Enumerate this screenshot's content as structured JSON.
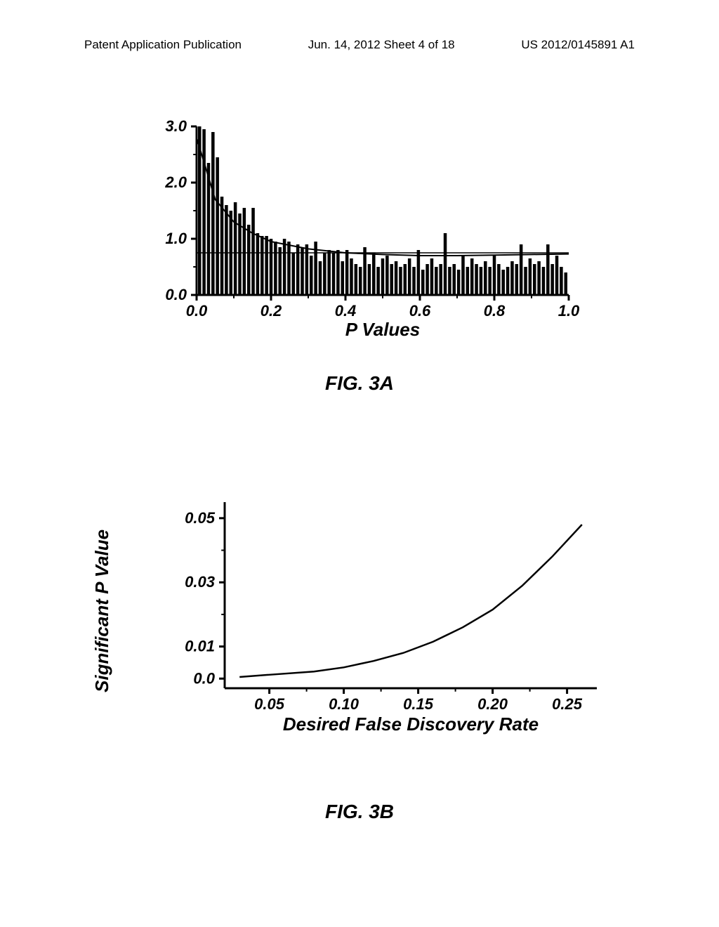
{
  "header": {
    "left": "Patent Application Publication",
    "center": "Jun. 14, 2012  Sheet 4 of 18",
    "right": "US 2012/0145891 A1"
  },
  "figA": {
    "type": "histogram",
    "caption": "FIG. 3A",
    "xlabel": "P Values",
    "xlim": [
      0.0,
      1.0
    ],
    "ylim": [
      0.0,
      3.0
    ],
    "xticks": [
      0.0,
      0.2,
      0.4,
      0.6,
      0.8,
      1.0
    ],
    "xtick_labels": [
      "0.0",
      "0.2",
      "0.4",
      "0.6",
      "0.8",
      "1.0"
    ],
    "yticks": [
      0.0,
      1.0,
      2.0,
      3.0
    ],
    "ytick_labels": [
      "0.0",
      "1.0",
      "2.0",
      "3.0"
    ],
    "bar_color": "#000000",
    "bar_width": 0.0085,
    "bars": [
      {
        "x": 0.008,
        "y": 3.05
      },
      {
        "x": 0.02,
        "y": 2.95
      },
      {
        "x": 0.032,
        "y": 2.35
      },
      {
        "x": 0.044,
        "y": 2.9
      },
      {
        "x": 0.056,
        "y": 2.45
      },
      {
        "x": 0.068,
        "y": 1.75
      },
      {
        "x": 0.08,
        "y": 1.6
      },
      {
        "x": 0.092,
        "y": 1.5
      },
      {
        "x": 0.104,
        "y": 1.65
      },
      {
        "x": 0.116,
        "y": 1.45
      },
      {
        "x": 0.128,
        "y": 1.55
      },
      {
        "x": 0.14,
        "y": 1.25
      },
      {
        "x": 0.152,
        "y": 1.55
      },
      {
        "x": 0.164,
        "y": 1.1
      },
      {
        "x": 0.176,
        "y": 1.05
      },
      {
        "x": 0.188,
        "y": 1.05
      },
      {
        "x": 0.2,
        "y": 1.0
      },
      {
        "x": 0.212,
        "y": 0.95
      },
      {
        "x": 0.224,
        "y": 0.85
      },
      {
        "x": 0.236,
        "y": 1.0
      },
      {
        "x": 0.248,
        "y": 0.95
      },
      {
        "x": 0.26,
        "y": 0.75
      },
      {
        "x": 0.272,
        "y": 0.9
      },
      {
        "x": 0.284,
        "y": 0.85
      },
      {
        "x": 0.296,
        "y": 0.9
      },
      {
        "x": 0.308,
        "y": 0.7
      },
      {
        "x": 0.32,
        "y": 0.95
      },
      {
        "x": 0.332,
        "y": 0.6
      },
      {
        "x": 0.344,
        "y": 0.75
      },
      {
        "x": 0.356,
        "y": 0.8
      },
      {
        "x": 0.368,
        "y": 0.75
      },
      {
        "x": 0.38,
        "y": 0.8
      },
      {
        "x": 0.392,
        "y": 0.6
      },
      {
        "x": 0.404,
        "y": 0.8
      },
      {
        "x": 0.416,
        "y": 0.65
      },
      {
        "x": 0.428,
        "y": 0.55
      },
      {
        "x": 0.44,
        "y": 0.5
      },
      {
        "x": 0.452,
        "y": 0.85
      },
      {
        "x": 0.464,
        "y": 0.55
      },
      {
        "x": 0.476,
        "y": 0.75
      },
      {
        "x": 0.488,
        "y": 0.5
      },
      {
        "x": 0.5,
        "y": 0.65
      },
      {
        "x": 0.512,
        "y": 0.7
      },
      {
        "x": 0.524,
        "y": 0.55
      },
      {
        "x": 0.536,
        "y": 0.6
      },
      {
        "x": 0.548,
        "y": 0.5
      },
      {
        "x": 0.56,
        "y": 0.55
      },
      {
        "x": 0.572,
        "y": 0.65
      },
      {
        "x": 0.584,
        "y": 0.5
      },
      {
        "x": 0.596,
        "y": 0.8
      },
      {
        "x": 0.608,
        "y": 0.45
      },
      {
        "x": 0.62,
        "y": 0.55
      },
      {
        "x": 0.632,
        "y": 0.65
      },
      {
        "x": 0.644,
        "y": 0.5
      },
      {
        "x": 0.656,
        "y": 0.55
      },
      {
        "x": 0.668,
        "y": 1.1
      },
      {
        "x": 0.68,
        "y": 0.5
      },
      {
        "x": 0.692,
        "y": 0.55
      },
      {
        "x": 0.704,
        "y": 0.45
      },
      {
        "x": 0.716,
        "y": 0.7
      },
      {
        "x": 0.728,
        "y": 0.5
      },
      {
        "x": 0.74,
        "y": 0.65
      },
      {
        "x": 0.752,
        "y": 0.55
      },
      {
        "x": 0.764,
        "y": 0.5
      },
      {
        "x": 0.776,
        "y": 0.6
      },
      {
        "x": 0.788,
        "y": 0.5
      },
      {
        "x": 0.8,
        "y": 0.7
      },
      {
        "x": 0.812,
        "y": 0.55
      },
      {
        "x": 0.824,
        "y": 0.45
      },
      {
        "x": 0.836,
        "y": 0.5
      },
      {
        "x": 0.848,
        "y": 0.6
      },
      {
        "x": 0.86,
        "y": 0.55
      },
      {
        "x": 0.872,
        "y": 0.9
      },
      {
        "x": 0.884,
        "y": 0.5
      },
      {
        "x": 0.896,
        "y": 0.65
      },
      {
        "x": 0.908,
        "y": 0.55
      },
      {
        "x": 0.92,
        "y": 0.6
      },
      {
        "x": 0.932,
        "y": 0.5
      },
      {
        "x": 0.944,
        "y": 0.9
      },
      {
        "x": 0.956,
        "y": 0.55
      },
      {
        "x": 0.968,
        "y": 0.7
      },
      {
        "x": 0.98,
        "y": 0.5
      },
      {
        "x": 0.992,
        "y": 0.4
      }
    ],
    "curve": [
      {
        "x": 0.0,
        "y": 2.8
      },
      {
        "x": 0.05,
        "y": 1.7
      },
      {
        "x": 0.1,
        "y": 1.3
      },
      {
        "x": 0.15,
        "y": 1.1
      },
      {
        "x": 0.2,
        "y": 0.95
      },
      {
        "x": 0.3,
        "y": 0.82
      },
      {
        "x": 0.4,
        "y": 0.75
      },
      {
        "x": 0.5,
        "y": 0.72
      },
      {
        "x": 0.6,
        "y": 0.7
      },
      {
        "x": 0.7,
        "y": 0.7
      },
      {
        "x": 0.8,
        "y": 0.71
      },
      {
        "x": 0.9,
        "y": 0.72
      },
      {
        "x": 1.0,
        "y": 0.73
      }
    ],
    "hline_y": 0.75,
    "axis_color": "#000000",
    "axis_width": 3,
    "tick_len": 8,
    "label_fontsize": 22,
    "xlabel_fontsize": 26
  },
  "figB": {
    "type": "line",
    "caption": "FIG. 3B",
    "xlabel": "Desired False Discovery Rate",
    "ylabel": "Significant P Value",
    "xlim": [
      0.02,
      0.27
    ],
    "ylim": [
      -0.003,
      0.055
    ],
    "xticks": [
      0.05,
      0.1,
      0.15,
      0.2,
      0.25
    ],
    "xtick_labels": [
      "0.05",
      "0.10",
      "0.15",
      "0.20",
      "0.25"
    ],
    "yticks": [
      0.0,
      0.01,
      0.03,
      0.05
    ],
    "ytick_labels": [
      "0.0",
      "0.01",
      "0.03",
      "0.05"
    ],
    "line_color": "#000000",
    "line_width": 2.5,
    "line": [
      {
        "x": 0.03,
        "y": 0.0005
      },
      {
        "x": 0.05,
        "y": 0.0012
      },
      {
        "x": 0.08,
        "y": 0.0022
      },
      {
        "x": 0.1,
        "y": 0.0035
      },
      {
        "x": 0.12,
        "y": 0.0055
      },
      {
        "x": 0.14,
        "y": 0.008
      },
      {
        "x": 0.16,
        "y": 0.0115
      },
      {
        "x": 0.18,
        "y": 0.016
      },
      {
        "x": 0.2,
        "y": 0.0215
      },
      {
        "x": 0.22,
        "y": 0.029
      },
      {
        "x": 0.24,
        "y": 0.038
      },
      {
        "x": 0.26,
        "y": 0.048
      }
    ],
    "axis_color": "#000000",
    "axis_width": 3,
    "tick_len": 8,
    "label_fontsize": 22,
    "xlabel_fontsize": 26
  }
}
